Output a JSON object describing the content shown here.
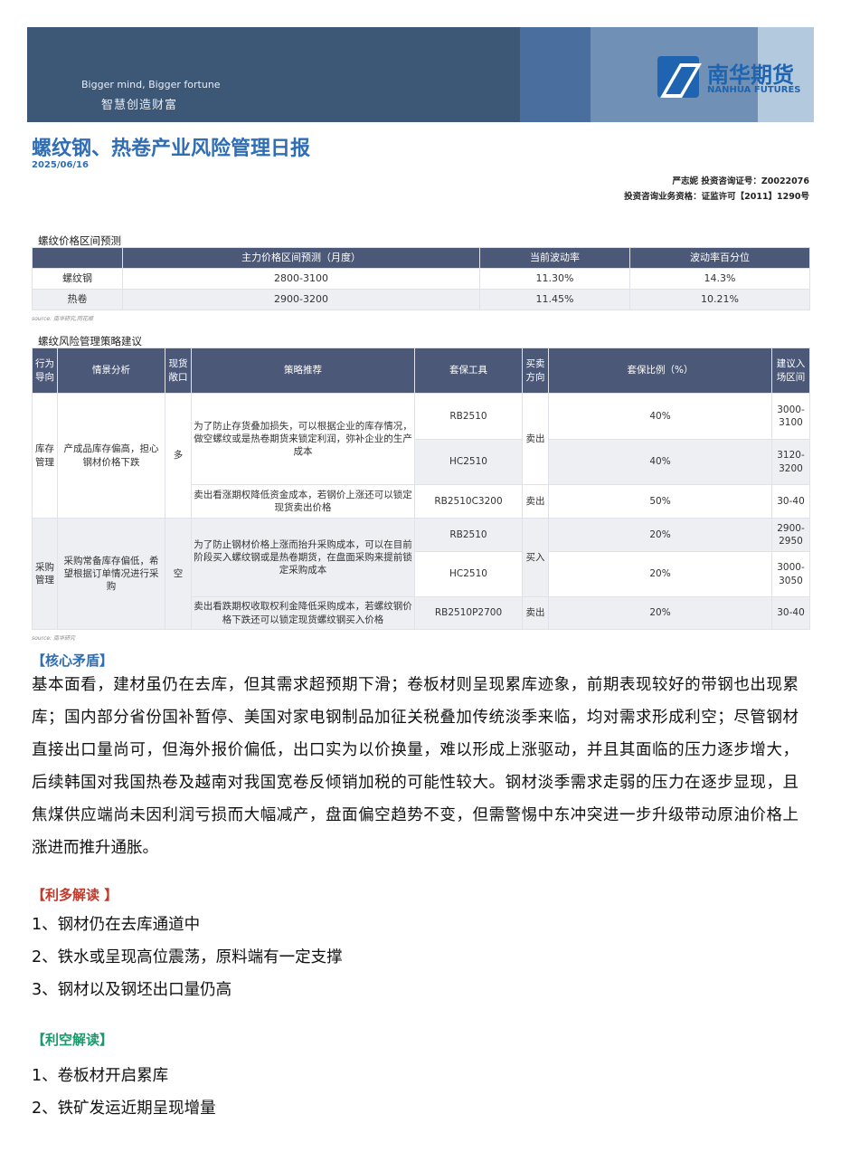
{
  "banner": {
    "slogan_en": "Bigger mind, Bigger fortune",
    "slogan_cn": "智慧创造财富",
    "logo_cn": "南华期货",
    "logo_en": "NANHUA FUTURES"
  },
  "header": {
    "title": "螺纹钢、热卷产业风险管理日报",
    "date": "2025/06/16",
    "author": "严志妮 投资咨询证号：Z0022076",
    "license": "投资咨询业务资格：证监许可【2011】1290号"
  },
  "price_table": {
    "caption": "螺纹价格区间预测",
    "headers": [
      "",
      "主力价格区间预测（月度）",
      "当前波动率",
      "波动率百分位"
    ],
    "rows": [
      [
        "螺纹钢",
        "2800-3100",
        "11.30%",
        "14.3%"
      ],
      [
        "热卷",
        "2900-3200",
        "11.45%",
        "10.21%"
      ]
    ],
    "source": "source: 南华研究,同花顺"
  },
  "strategy_table": {
    "caption": "螺纹风险管理策略建议",
    "headers": [
      "行为导向",
      "情景分析",
      "现货敞口",
      "策略推荐",
      "套保工具",
      "买卖方向",
      "套保比例（%）",
      "建议入场区间"
    ],
    "groups": [
      {
        "behavior": "库存管理",
        "scenario": "产成品库存偏高，担心钢材价格下跌",
        "exposure": "多",
        "strategy1": "为了防止存货叠加损失，可以根据企业的库存情况，做空螺纹或是热卷期货来锁定利润，弥补企业的生产成本",
        "dir1": "卖出",
        "rows": [
          {
            "tool": "RB2510",
            "ratio": "40%",
            "range": "3000-3100"
          },
          {
            "tool": "HC2510",
            "ratio": "40%",
            "range": "3120-3200"
          }
        ],
        "strategy2": "卖出看涨期权降低资金成本，若钢价上涨还可以锁定现货卖出价格",
        "tool2": "RB2510C3200",
        "dir2": "卖出",
        "ratio2": "50%",
        "range2": "30-40"
      },
      {
        "behavior": "采购管理",
        "scenario": "采购常备库存偏低，希望根据订单情况进行采购",
        "exposure": "空",
        "strategy1": "为了防止钢材价格上涨而抬升采购成本，可以在目前阶段买入螺纹钢或是热卷期货，在盘面采购来提前锁定采购成本",
        "dir1": "买入",
        "rows": [
          {
            "tool": "RB2510",
            "ratio": "20%",
            "range": "2900-2950"
          },
          {
            "tool": "HC2510",
            "ratio": "20%",
            "range": "3000-3050"
          }
        ],
        "strategy2": "卖出看跌期权收取权利金降低采购成本，若螺纹钢价格下跌还可以锁定现货螺纹钢买入价格",
        "tool2": "RB2510P2700",
        "dir2": "卖出",
        "ratio2": "20%",
        "range2": "30-40"
      }
    ],
    "source": "source: 南华研究"
  },
  "core": {
    "heading": "【核心矛盾】",
    "lines": [
      "基本面看，建材虽仍在去库，但其需求超预期下滑；卷板材则呈现累库迹象，前期表现较好的带钢也出现累",
      "库；国内部分省份国补暂停、美国对家电钢制品加征关税叠加传统淡季来临，均对需求形成利空；尽管钢材",
      "直接出口量尚可，但海外报价偏低，出口实为以价换量，难以形成上涨驱动，并且其面临的压力逐步增大，",
      "后续韩国对我国热卷及越南对我国宽卷反倾销加税的可能性较大。钢材淡季需求走弱的压力在逐步显现，且",
      "焦煤供应端尚未因利润亏损而大幅减产，盘面偏空趋势不变，但需警惕中东冲突进一步升级带动原油价格上",
      "涨进而推升通胀。"
    ]
  },
  "bullish": {
    "heading": "【利多解读 】",
    "items": [
      "1、钢材仍在去库通道中",
      "2、铁水或呈现高位震荡，原料端有一定支撑",
      "3、钢材以及钢坯出口量仍高"
    ]
  },
  "bearish": {
    "heading": "【利空解读】",
    "items": [
      "1、卷板材开启累库",
      "2、铁矿发运近期呈现增量"
    ]
  },
  "colors": {
    "banner": "#3d5777",
    "title": "#2f6db5",
    "table_header": "#4b5877",
    "bullish": "#c0392b",
    "bearish": "#1a9a6a"
  }
}
